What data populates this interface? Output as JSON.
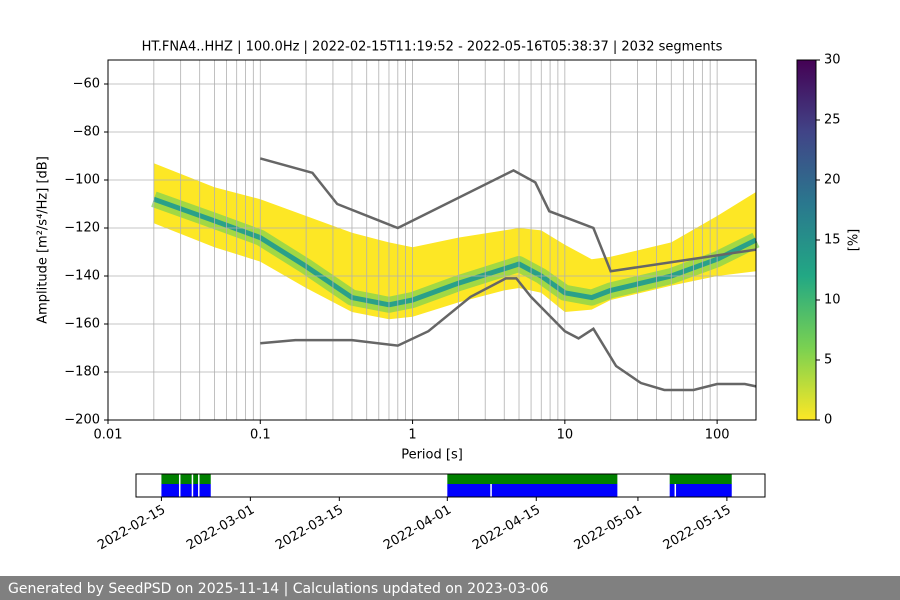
{
  "chart_data": [
    {
      "type": "ppsd",
      "title": "HT.FNA4..HHZ | 100.0Hz | 2022-02-15T11:19:52 - 2022-05-16T05:38:37 | 2032 segments",
      "xlabel": "Period [s]",
      "ylabel": "Amplitude [m²/s⁴/Hz] [dB]",
      "xlog": true,
      "xlim": [
        0.01,
        180
      ],
      "ylim": [
        -200,
        -50
      ],
      "xticks": [
        0.01,
        0.1,
        1,
        10,
        100
      ],
      "xgrid": [
        0.02,
        0.03,
        0.04,
        0.05,
        0.06,
        0.07,
        0.08,
        0.09,
        0.2,
        0.3,
        0.4,
        0.5,
        0.6,
        0.7,
        0.8,
        0.9,
        2,
        3,
        4,
        5,
        6,
        7,
        8,
        9,
        20,
        30,
        40,
        50,
        60,
        70,
        80,
        90
      ],
      "yticks": [
        {
          "value": -200,
          "label": "−200"
        },
        {
          "value": -180,
          "label": "−180"
        },
        {
          "value": -160,
          "label": "−160"
        },
        {
          "value": -140,
          "label": "−140"
        },
        {
          "value": -120,
          "label": "−120"
        },
        {
          "value": -100,
          "label": "−100"
        },
        {
          "value": -80,
          "label": "−80"
        },
        {
          "value": -60,
          "label": "−60"
        }
      ],
      "grid": true,
      "density": {
        "x": [
          0.02,
          0.05,
          0.1,
          0.2,
          0.4,
          0.7,
          1,
          2,
          4,
          5,
          7,
          10,
          15,
          20,
          50,
          100,
          180
        ],
        "upper": [
          -93,
          -103,
          -108,
          -115,
          -122,
          -126,
          -128,
          -124,
          -121,
          -120,
          -121,
          -127,
          -133,
          -132,
          -126,
          -115,
          -105
        ],
        "lower": [
          -118,
          -128,
          -134,
          -145,
          -155,
          -158,
          -157,
          -151,
          -146,
          -145,
          -147,
          -155,
          -154,
          -150,
          -144,
          -140,
          -138
        ],
        "mode": [
          -108,
          -117,
          -124,
          -136,
          -149,
          -152,
          -150,
          -143,
          -137,
          -135,
          -140,
          -147,
          -149,
          -146,
          -140,
          -133,
          -125
        ],
        "envelope_color": "#fde725",
        "mode_color": "#2aa089"
      },
      "series": [
        {
          "color": "#666666",
          "x": [
            0.1,
            0.22,
            0.32,
            0.8,
            4.6,
            6.4,
            7.9,
            15.4,
            20,
            180
          ],
          "values": [
            -91,
            -97,
            -110,
            -120,
            -96,
            -101,
            -113,
            -120,
            -138,
            -129
          ]
        },
        {
          "color": "#666666",
          "x": [
            0.1,
            0.17,
            0.4,
            0.8,
            1.27,
            2.4,
            4.1,
            4.8,
            6,
            10,
            12.3,
            15.4,
            21.7,
            31.6,
            45,
            70,
            100,
            152,
            180
          ],
          "values": [
            -168,
            -166.7,
            -166.7,
            -169,
            -163,
            -148.7,
            -141,
            -141,
            -148.7,
            -163,
            -166,
            -162,
            -177.5,
            -184.6,
            -187.5,
            -187.5,
            -185,
            -185,
            -186
          ]
        }
      ],
      "colorbar": {
        "label": "[%]",
        "lim": [
          0,
          30
        ],
        "ticks": [
          0,
          5,
          10,
          15,
          20,
          25,
          30
        ],
        "colors": [
          "#fde725",
          "#7ad151",
          "#22a884",
          "#2a788e",
          "#414487",
          "#440154"
        ]
      }
    },
    {
      "type": "timeline",
      "xlim": [
        "2022-02-11",
        "2022-05-21"
      ],
      "xticks": [
        "2022-02-15",
        "2022-03-01",
        "2022-03-15",
        "2022-04-01",
        "2022-04-15",
        "2022-05-01",
        "2022-05-15"
      ],
      "available": {
        "color": "#008000",
        "spans": [
          [
            "2022-02-15",
            "2022-02-18"
          ],
          [
            "2022-02-18",
            "2022-02-20"
          ],
          [
            "2022-02-20",
            "2022-02-21"
          ],
          [
            "2022-02-21",
            "2022-02-23"
          ],
          [
            "2022-04-01",
            "2022-04-28"
          ],
          [
            "2022-05-06",
            "2022-05-16"
          ]
        ]
      },
      "psd_segments": {
        "color": "#0000ff",
        "spans": [
          [
            "2022-02-15",
            "2022-02-18"
          ],
          [
            "2022-02-18",
            "2022-02-20"
          ],
          [
            "2022-02-20",
            "2022-02-21"
          ],
          [
            "2022-02-21",
            "2022-02-23"
          ],
          [
            "2022-04-01",
            "2022-04-08"
          ],
          [
            "2022-04-08",
            "2022-04-28"
          ],
          [
            "2022-05-06",
            "2022-05-07"
          ],
          [
            "2022-05-07",
            "2022-05-16"
          ]
        ]
      }
    }
  ],
  "footer": "Generated by SeedPSD on 2025-11-14 | Calculations updated on 2023-03-06"
}
